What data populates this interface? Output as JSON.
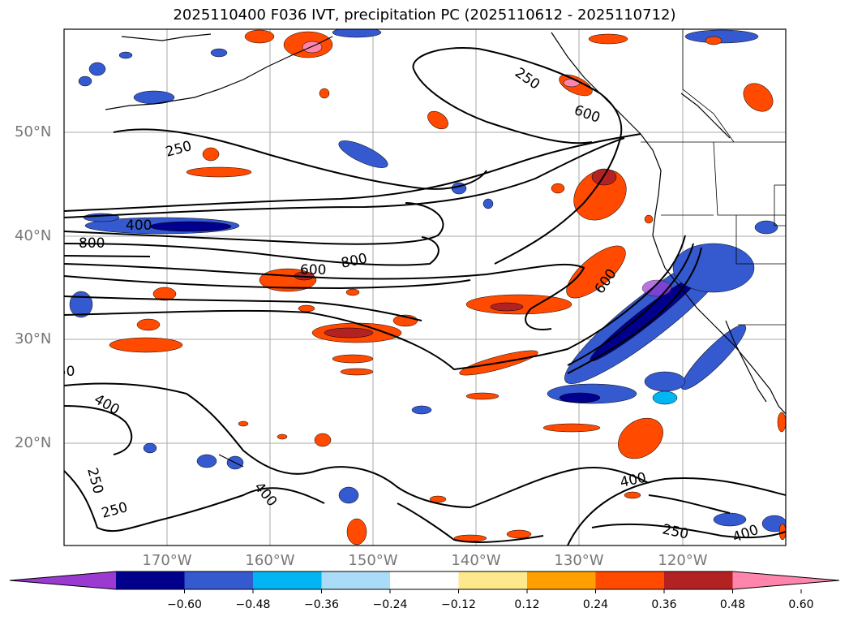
{
  "title": "2025110400 F036 IVT, precipitation PC (2025110612 - 2025110712)",
  "lat_labels": [
    "50°N",
    "40°N",
    "30°N",
    "20°N"
  ],
  "lon_labels": [
    "170°W",
    "160°W",
    "150°W",
    "140°W",
    "130°W",
    "120°W"
  ],
  "contour_labels": [
    "250",
    "400",
    "600",
    "800",
    "800",
    "400",
    "600",
    "800",
    "600",
    "250",
    "600",
    "250",
    "400",
    "250",
    "250",
    "400",
    "400",
    "250",
    "400"
  ],
  "colorbar": {
    "ticks": [
      "−0.60",
      "−0.48",
      "−0.36",
      "−0.24",
      "−0.12",
      "0.12",
      "0.24",
      "0.36",
      "0.48",
      "0.60"
    ],
    "colors": [
      "#9a3ad1",
      "#00008c",
      "#3559cf",
      "#00b5f2",
      "#aadcf7",
      "#ffffff",
      "#fde88c",
      "#ff9f00",
      "#ff4a00",
      "#b22222",
      "#ff85ad"
    ]
  },
  "icons": {
    "map": "ivt-precip-map"
  }
}
